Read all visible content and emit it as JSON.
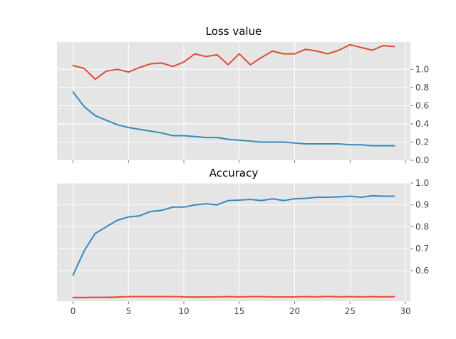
{
  "chart_data": [
    {
      "type": "line",
      "title": "Loss value",
      "xlabel": "",
      "ylabel": "",
      "xlim": [
        -1.45,
        30.45
      ],
      "ylim": [
        0.0,
        1.3
      ],
      "xticks": [
        0,
        5,
        10,
        15,
        20,
        25,
        30
      ],
      "xtick_labels_visible": false,
      "yticks": [
        0.0,
        0.2,
        0.4,
        0.6,
        0.8,
        1.0
      ],
      "ytick_labels": [
        "0.0",
        "0.2",
        "0.4",
        "0.6",
        "0.8",
        "1.0"
      ],
      "yaxis_side": "right",
      "grid": true,
      "x": [
        0,
        1,
        2,
        3,
        4,
        5,
        6,
        7,
        8,
        9,
        10,
        11,
        12,
        13,
        14,
        15,
        16,
        17,
        18,
        19,
        20,
        21,
        22,
        23,
        24,
        25,
        26,
        27,
        28,
        29
      ],
      "series": [
        {
          "color": "#e24a33",
          "values": [
            1.04,
            1.01,
            0.89,
            0.98,
            1.0,
            0.97,
            1.02,
            1.06,
            1.07,
            1.03,
            1.08,
            1.17,
            1.14,
            1.16,
            1.05,
            1.17,
            1.05,
            1.13,
            1.2,
            1.17,
            1.17,
            1.22,
            1.2,
            1.17,
            1.21,
            1.27,
            1.24,
            1.21,
            1.26,
            1.25
          ]
        },
        {
          "color": "#348abd",
          "values": [
            0.75,
            0.59,
            0.49,
            0.44,
            0.39,
            0.36,
            0.34,
            0.32,
            0.3,
            0.27,
            0.27,
            0.26,
            0.25,
            0.25,
            0.23,
            0.22,
            0.21,
            0.2,
            0.2,
            0.2,
            0.19,
            0.18,
            0.18,
            0.18,
            0.18,
            0.17,
            0.17,
            0.16,
            0.16,
            0.16
          ]
        }
      ]
    },
    {
      "type": "line",
      "title": "Accuracy",
      "xlabel": "",
      "ylabel": "",
      "xlim": [
        -1.45,
        30.45
      ],
      "ylim": [
        0.46,
        1.0
      ],
      "xticks": [
        0,
        5,
        10,
        15,
        20,
        25,
        30
      ],
      "xtick_labels": [
        "0",
        "5",
        "10",
        "15",
        "20",
        "25",
        "30"
      ],
      "xtick_labels_visible": true,
      "yticks": [
        0.6,
        0.7,
        0.8,
        0.9,
        1.0
      ],
      "ytick_labels": [
        "0.6",
        "0.7",
        "0.8",
        "0.9",
        "1.0"
      ],
      "yaxis_side": "right",
      "grid": true,
      "x": [
        0,
        1,
        2,
        3,
        4,
        5,
        6,
        7,
        8,
        9,
        10,
        11,
        12,
        13,
        14,
        15,
        16,
        17,
        18,
        19,
        20,
        21,
        22,
        23,
        24,
        25,
        26,
        27,
        28,
        29
      ],
      "series": [
        {
          "color": "#348abd",
          "values": [
            0.58,
            0.69,
            0.77,
            0.8,
            0.83,
            0.845,
            0.85,
            0.87,
            0.875,
            0.89,
            0.89,
            0.9,
            0.905,
            0.9,
            0.92,
            0.922,
            0.925,
            0.92,
            0.928,
            0.92,
            0.928,
            0.93,
            0.935,
            0.935,
            0.937,
            0.94,
            0.935,
            0.942,
            0.94,
            0.94
          ]
        },
        {
          "color": "#e24a33",
          "values": [
            0.477,
            0.477,
            0.478,
            0.478,
            0.479,
            0.481,
            0.481,
            0.481,
            0.481,
            0.481,
            0.48,
            0.479,
            0.48,
            0.48,
            0.481,
            0.48,
            0.481,
            0.481,
            0.48,
            0.48,
            0.48,
            0.481,
            0.48,
            0.482,
            0.48,
            0.481,
            0.48,
            0.481,
            0.48,
            0.481
          ]
        }
      ]
    }
  ]
}
